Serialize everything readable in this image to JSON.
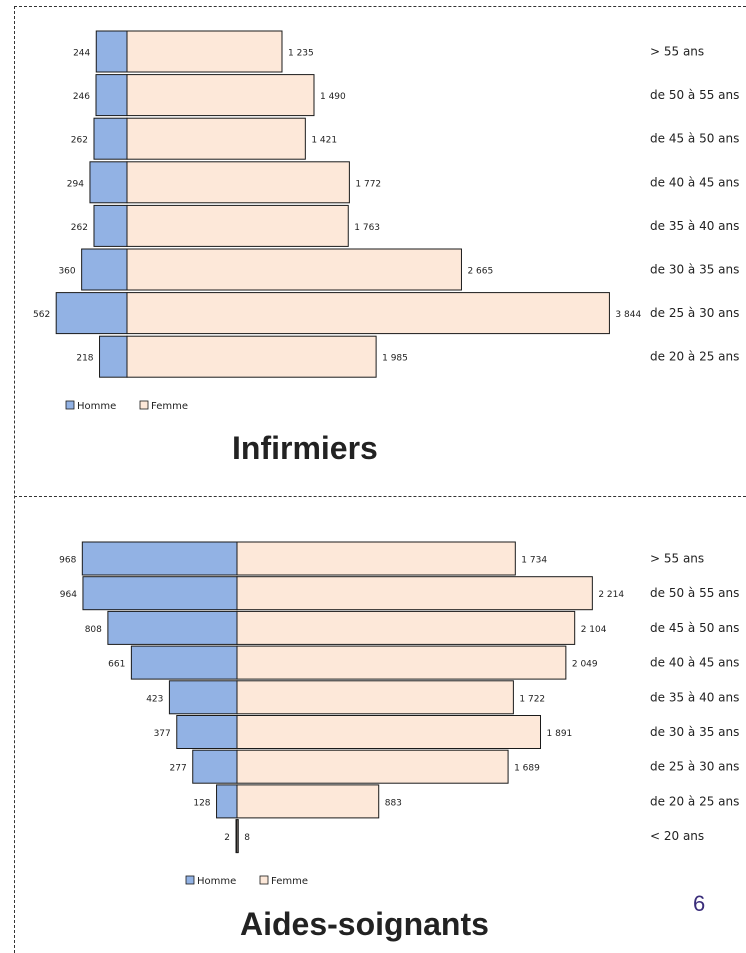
{
  "page_number": "6",
  "colors": {
    "homme": "#92b2e4",
    "femme": "#fde8d9",
    "outline": "#1a1a1a"
  },
  "chart_data": [
    {
      "type": "bar",
      "orientation": "horizontal-population-pyramid",
      "title": "Infirmiers",
      "categories": [
        "> 55 ans",
        "de 50 à 55 ans",
        "de 45 à 50 ans",
        "de 40 à 45 ans",
        "de 35 à 40 ans",
        "de 30 à 35 ans",
        "de 25 à 30 ans",
        "de 20 à 25 ans"
      ],
      "series": [
        {
          "name": "Homme",
          "values": [
            244,
            246,
            262,
            294,
            262,
            360,
            562,
            218
          ],
          "labels": [
            "244",
            "246",
            "262",
            "294",
            "262",
            "360",
            "562",
            "218"
          ]
        },
        {
          "name": "Femme",
          "values": [
            1235,
            1490,
            1421,
            1772,
            1763,
            2665,
            3844,
            1985
          ],
          "labels": [
            "1 235",
            "1 490",
            "1 421",
            "1 772",
            "1 763",
            "2 665",
            "3 844",
            "1 985"
          ]
        }
      ],
      "legend": {
        "placement": "bottom-left",
        "items": [
          "Homme",
          "Femme"
        ]
      },
      "grid": false
    },
    {
      "type": "bar",
      "orientation": "horizontal-population-pyramid",
      "title": "Aides-soignants",
      "categories": [
        "> 55 ans",
        "de 50 à 55 ans",
        "de 45 à 50 ans",
        "de 40 à 45 ans",
        "de 35 à 40 ans",
        "de 30 à 35 ans",
        "de 25 à 30 ans",
        "de 20 à 25 ans",
        "< 20 ans"
      ],
      "series": [
        {
          "name": "Homme",
          "values": [
            968,
            964,
            808,
            661,
            423,
            377,
            277,
            128,
            2
          ],
          "labels": [
            "968",
            "964",
            "808",
            "661",
            "423",
            "377",
            "277",
            "128",
            "2"
          ]
        },
        {
          "name": "Femme",
          "values": [
            1734,
            2214,
            2104,
            2049,
            1722,
            1891,
            1689,
            883,
            8
          ],
          "labels": [
            "1 734",
            "2 214",
            "2 104",
            "2 049",
            "1 722",
            "1 891",
            "1 689",
            "883",
            "8"
          ]
        }
      ],
      "legend": {
        "placement": "bottom-center",
        "items": [
          "Homme",
          "Femme"
        ]
      },
      "grid": false
    }
  ]
}
